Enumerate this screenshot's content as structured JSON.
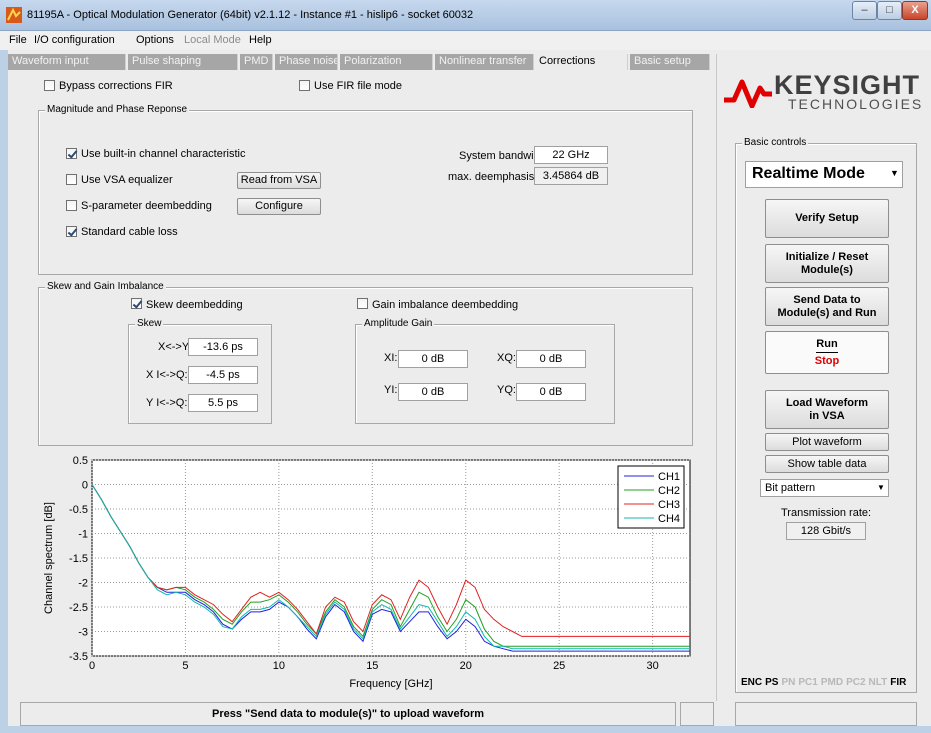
{
  "window": {
    "title": "81195A - Optical Modulation Generator (64bit) v2.1.12 - Instance #1 - hislip6 - socket 60032",
    "buttons": {
      "minimize": "–",
      "maximize": "□",
      "close": "X"
    }
  },
  "menu": [
    {
      "label": "File",
      "enabled": true
    },
    {
      "label": "I/O configuration",
      "enabled": true
    },
    {
      "label": "Options",
      "enabled": true
    },
    {
      "label": "Local Mode",
      "enabled": false
    },
    {
      "label": "Help",
      "enabled": true
    }
  ],
  "tabs": [
    {
      "label": "Waveform input",
      "active": false
    },
    {
      "label": "Pulse shaping",
      "active": false
    },
    {
      "label": "PMD",
      "active": false
    },
    {
      "label": "Phase noise",
      "active": false
    },
    {
      "label": "Polarization",
      "active": false
    },
    {
      "label": "Nonlinear transfer",
      "active": false
    },
    {
      "label": "Corrections",
      "active": true
    },
    {
      "label": "Basic setup",
      "active": false
    }
  ],
  "corrections": {
    "bypass_fir": {
      "label": "Bypass corrections FIR",
      "checked": false
    },
    "fir_file_mode": {
      "label": "Use FIR file mode",
      "checked": false
    },
    "mag_phase": {
      "title": "Magnitude and Phase Reponse",
      "builtin": {
        "label": "Use built-in channel characteristic",
        "checked": true
      },
      "vsa_eq": {
        "label": "Use VSA equalizer",
        "checked": false
      },
      "sparam": {
        "label": "S-parameter deembedding",
        "checked": false
      },
      "cable": {
        "label": "Standard cable loss",
        "checked": true
      },
      "read_vsa_button": "Read from VSA",
      "configure_button": "Configure",
      "bandwidth_label": "System bandwidth:",
      "bandwidth_value": "22 GHz",
      "deemph_label": "max. deemphasis:",
      "deemph_value": "3.45864 dB"
    },
    "skew_gain": {
      "title": "Skew and Gain Imbalance",
      "skew_deemb": {
        "label": "Skew deembedding",
        "checked": true
      },
      "gain_deemb": {
        "label": "Gain imbalance deembedding",
        "checked": false
      },
      "skew": {
        "title": "Skew",
        "xy_label": "X<->Y:",
        "xy_value": "-13.6 ps",
        "xiq_label": "X I<->Q:",
        "xiq_value": "-4.5 ps",
        "yiq_label": "Y I<->Q:",
        "yiq_value": "5.5 ps"
      },
      "amp_gain": {
        "title": "Amplitude Gain",
        "xi_label": "XI:",
        "xi_value": "0 dB",
        "xq_label": "XQ:",
        "xq_value": "0 dB",
        "yi_label": "YI:",
        "yi_value": "0 dB",
        "yq_label": "YQ:",
        "yq_value": "0 dB"
      }
    }
  },
  "chart_data": {
    "type": "line",
    "xlabel": "Frequency [GHz]",
    "ylabel": "Channel spectrum [dB]",
    "xlim": [
      0,
      32
    ],
    "ylim": [
      -3.5,
      0.5
    ],
    "xticks": [
      0,
      5,
      10,
      15,
      20,
      25,
      30
    ],
    "yticks": [
      0.5,
      0,
      -0.5,
      -1,
      -1.5,
      -2,
      -2.5,
      -3,
      -3.5
    ],
    "grid": true,
    "legend_position": "top-right",
    "series": [
      {
        "name": "CH1",
        "color": "#2020e0",
        "x": [
          0,
          0.5,
          1,
          1.5,
          2,
          2.5,
          3,
          3.5,
          4,
          4.5,
          5,
          5.5,
          6,
          6.5,
          7,
          7.5,
          8,
          8.5,
          9,
          9.5,
          10,
          10.5,
          11,
          11.5,
          12,
          12.5,
          13,
          13.5,
          14,
          14.5,
          15,
          15.5,
          16,
          16.5,
          17,
          17.5,
          18,
          18.5,
          19,
          19.5,
          20,
          20.5,
          21,
          21.5,
          22,
          22.5,
          23,
          24,
          26,
          28,
          30,
          32
        ],
        "y": [
          0.0,
          -0.3,
          -0.65,
          -0.95,
          -1.25,
          -1.6,
          -1.9,
          -2.1,
          -2.2,
          -2.2,
          -2.2,
          -2.35,
          -2.45,
          -2.6,
          -2.85,
          -2.95,
          -2.75,
          -2.6,
          -2.6,
          -2.55,
          -2.4,
          -2.5,
          -2.7,
          -2.95,
          -3.15,
          -2.7,
          -2.45,
          -2.6,
          -3.0,
          -3.2,
          -2.65,
          -2.55,
          -2.6,
          -3.0,
          -2.8,
          -2.6,
          -2.6,
          -2.9,
          -3.15,
          -3.0,
          -2.75,
          -2.9,
          -3.2,
          -3.3,
          -3.35,
          -3.4,
          -3.4,
          -3.4,
          -3.4,
          -3.4,
          -3.4,
          -3.4
        ]
      },
      {
        "name": "CH2",
        "color": "#20a020",
        "x": [
          0,
          0.5,
          1,
          1.5,
          2,
          2.5,
          3,
          3.5,
          4,
          4.5,
          5,
          5.5,
          6,
          6.5,
          7,
          7.5,
          8,
          8.5,
          9,
          9.5,
          10,
          10.5,
          11,
          11.5,
          12,
          12.5,
          13,
          13.5,
          14,
          14.5,
          15,
          15.5,
          16,
          16.5,
          17,
          17.5,
          18,
          18.5,
          19,
          19.5,
          20,
          20.5,
          21,
          21.5,
          22,
          22.5,
          23,
          24,
          26,
          28,
          30,
          32
        ],
        "y": [
          0.0,
          -0.3,
          -0.65,
          -0.95,
          -1.25,
          -1.6,
          -1.9,
          -2.1,
          -2.15,
          -2.1,
          -2.15,
          -2.3,
          -2.4,
          -2.55,
          -2.75,
          -2.85,
          -2.6,
          -2.4,
          -2.4,
          -2.35,
          -2.25,
          -2.4,
          -2.6,
          -2.85,
          -3.05,
          -2.6,
          -2.35,
          -2.5,
          -2.9,
          -3.1,
          -2.55,
          -2.35,
          -2.45,
          -2.9,
          -2.55,
          -2.2,
          -2.3,
          -2.7,
          -3.0,
          -2.75,
          -2.35,
          -2.5,
          -2.95,
          -3.2,
          -3.3,
          -3.3,
          -3.3,
          -3.3,
          -3.3,
          -3.3,
          -3.3,
          -3.3
        ]
      },
      {
        "name": "CH3",
        "color": "#e02020",
        "x": [
          0,
          0.5,
          1,
          1.5,
          2,
          2.5,
          3,
          3.5,
          4,
          4.5,
          5,
          5.5,
          6,
          6.5,
          7,
          7.5,
          8,
          8.5,
          9,
          9.5,
          10,
          10.5,
          11,
          11.5,
          12,
          12.5,
          13,
          13.5,
          14,
          14.5,
          15,
          15.5,
          16,
          16.5,
          17,
          17.5,
          18,
          18.5,
          19,
          19.5,
          20,
          20.5,
          21,
          21.5,
          22,
          22.5,
          23,
          24,
          26,
          28,
          30,
          32
        ],
        "y": [
          0.0,
          -0.3,
          -0.65,
          -0.95,
          -1.25,
          -1.6,
          -1.9,
          -2.1,
          -2.15,
          -2.1,
          -2.1,
          -2.25,
          -2.35,
          -2.45,
          -2.65,
          -2.8,
          -2.55,
          -2.3,
          -2.2,
          -2.3,
          -2.2,
          -2.35,
          -2.55,
          -2.8,
          -3.05,
          -2.5,
          -2.3,
          -2.4,
          -2.8,
          -3.0,
          -2.45,
          -2.25,
          -2.35,
          -2.75,
          -2.3,
          -1.95,
          -2.1,
          -2.5,
          -2.85,
          -2.45,
          -1.95,
          -2.1,
          -2.55,
          -2.75,
          -2.9,
          -3.0,
          -3.1,
          -3.1,
          -3.1,
          -3.1,
          -3.1,
          -3.1
        ]
      },
      {
        "name": "CH4",
        "color": "#10b8b0",
        "x": [
          0,
          0.5,
          1,
          1.5,
          2,
          2.5,
          3,
          3.5,
          4,
          4.5,
          5,
          5.5,
          6,
          6.5,
          7,
          7.5,
          8,
          8.5,
          9,
          9.5,
          10,
          10.5,
          11,
          11.5,
          12,
          12.5,
          13,
          13.5,
          14,
          14.5,
          15,
          15.5,
          16,
          16.5,
          17,
          17.5,
          18,
          18.5,
          19,
          19.5,
          20,
          20.5,
          21,
          21.5,
          22,
          22.5,
          23,
          24,
          26,
          28,
          30,
          32
        ],
        "y": [
          0.0,
          -0.3,
          -0.65,
          -0.95,
          -1.25,
          -1.6,
          -1.9,
          -2.15,
          -2.25,
          -2.2,
          -2.25,
          -2.4,
          -2.5,
          -2.65,
          -2.9,
          -2.95,
          -2.7,
          -2.55,
          -2.55,
          -2.5,
          -2.35,
          -2.5,
          -2.7,
          -2.9,
          -3.1,
          -2.65,
          -2.4,
          -2.55,
          -2.95,
          -3.15,
          -2.6,
          -2.45,
          -2.55,
          -2.95,
          -2.7,
          -2.45,
          -2.5,
          -2.8,
          -3.1,
          -2.9,
          -2.6,
          -2.75,
          -3.1,
          -3.3,
          -3.3,
          -3.35,
          -3.35,
          -3.35,
          -3.35,
          -3.35,
          -3.35,
          -3.35
        ]
      }
    ]
  },
  "right_panel": {
    "logo_name": "KEYSIGHT",
    "logo_sub": "TECHNOLOGIES",
    "logo_color": "#e00000",
    "group_title": "Basic controls",
    "mode_select": "Realtime Mode",
    "verify_button": "Verify Setup",
    "init_button": [
      "Initialize / Reset",
      "Module(s)"
    ],
    "send_button": [
      "Send Data to",
      "Module(s) and Run"
    ],
    "run_label": "Run",
    "stop_label": "Stop",
    "load_vsa_button": [
      "Load Waveform",
      "in VSA"
    ],
    "plot_button": "Plot waveform",
    "table_button": "Show table data",
    "data_select": "Bit pattern",
    "rate_label": "Transmission rate:",
    "rate_value": "128 Gbit/s",
    "flags": [
      {
        "label": "ENC",
        "active": true
      },
      {
        "label": "PS",
        "active": true
      },
      {
        "label": "PN",
        "active": false
      },
      {
        "label": "PC1",
        "active": false
      },
      {
        "label": "PMD",
        "active": false
      },
      {
        "label": "PC2",
        "active": false
      },
      {
        "label": "NLT",
        "active": false
      },
      {
        "label": "FIR",
        "active": true
      }
    ]
  },
  "status": {
    "message": "Press \"Send data to module(s)\" to upload waveform"
  }
}
